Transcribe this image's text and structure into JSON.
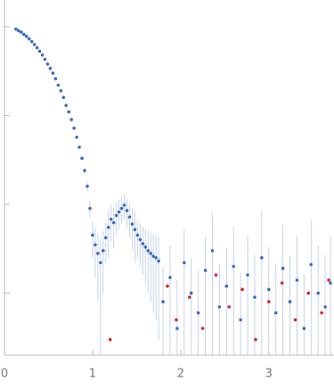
{
  "chart_data": {
    "type": "scatter",
    "xlim": [
      0,
      3.74
    ],
    "xticks": [
      0,
      1,
      2,
      3
    ],
    "ylim": [
      0.0002,
      2
    ],
    "yticks": [
      0.001,
      0.01,
      0.1,
      1
    ],
    "log_y": true,
    "error_color": "#b7c8e6",
    "series": [
      {
        "color": "#3a6bbf",
        "x": [
          0.13,
          0.16,
          0.19,
          0.22,
          0.25,
          0.28,
          0.31,
          0.34,
          0.37,
          0.4,
          0.43,
          0.46,
          0.49,
          0.52,
          0.55,
          0.58,
          0.61,
          0.64,
          0.67,
          0.7,
          0.73,
          0.76,
          0.79,
          0.82,
          0.85,
          0.88,
          0.91,
          0.94,
          0.97,
          1.0,
          1.03,
          1.06,
          1.09,
          1.12,
          1.15,
          1.18,
          1.21,
          1.24,
          1.27,
          1.3,
          1.33,
          1.36,
          1.39,
          1.42,
          1.45,
          1.48,
          1.51,
          1.54,
          1.57,
          1.6,
          1.63,
          1.66,
          1.69,
          1.72,
          1.75,
          1.8,
          1.88,
          1.96,
          2.04,
          2.12,
          2.2,
          2.28,
          2.36,
          2.44,
          2.52,
          2.6,
          2.68,
          2.76,
          2.84,
          2.92,
          3.0,
          3.08,
          3.16,
          3.24,
          3.32,
          3.4,
          3.48,
          3.56,
          3.64,
          3.7
        ],
        "values": [
          0.94,
          0.9,
          0.87,
          0.82,
          0.78,
          0.73,
          0.68,
          0.63,
          0.58,
          0.53,
          0.48,
          0.43,
          0.38,
          0.34,
          0.3,
          0.26,
          0.22,
          0.19,
          0.16,
          0.13,
          0.11,
          0.09,
          0.072,
          0.057,
          0.044,
          0.033,
          0.024,
          0.016,
          0.009,
          0.0045,
          0.0035,
          0.0028,
          0.0022,
          0.003,
          0.0042,
          0.0055,
          0.0068,
          0.0062,
          0.0075,
          0.0082,
          0.009,
          0.0098,
          0.0085,
          0.0072,
          0.006,
          0.0052,
          0.0045,
          0.004,
          0.0036,
          0.0033,
          0.003,
          0.0028,
          0.0026,
          0.0025,
          0.0023,
          0.0008,
          0.0015,
          0.0004,
          0.0022,
          0.001,
          0.0006,
          0.0018,
          0.003,
          0.0007,
          0.0012,
          0.002,
          0.0005,
          0.0016,
          0.0009,
          0.0025,
          0.0011,
          0.0006,
          0.0019,
          0.0008,
          0.0014,
          0.0004,
          0.0021,
          0.001,
          0.0007,
          0.0013
        ],
        "errors": [
          0.005,
          0.005,
          0.005,
          0.005,
          0.005,
          0.004,
          0.004,
          0.004,
          0.004,
          0.004,
          0.003,
          0.003,
          0.003,
          0.003,
          0.003,
          0.002,
          0.002,
          0.002,
          0.002,
          0.002,
          0.002,
          0.002,
          0.002,
          0.002,
          0.002,
          0.002,
          0.002,
          0.002,
          0.002,
          0.002,
          0.002,
          0.002,
          0.002,
          0.002,
          0.002,
          0.003,
          0.003,
          0.003,
          0.003,
          0.003,
          0.003,
          0.003,
          0.003,
          0.003,
          0.003,
          0.003,
          0.002,
          0.002,
          0.002,
          0.002,
          0.002,
          0.002,
          0.002,
          0.002,
          0.002,
          0.0012,
          0.002,
          0.001,
          0.003,
          0.0015,
          0.0012,
          0.0025,
          0.005,
          0.0014,
          0.002,
          0.0035,
          0.0012,
          0.0028,
          0.0018,
          0.006,
          0.0022,
          0.0015,
          0.004,
          0.0018,
          0.003,
          0.0012,
          0.0045,
          0.0025,
          0.002,
          0.003
        ]
      },
      {
        "color": "#d62728",
        "x": [
          1.2,
          1.85,
          1.95,
          2.1,
          2.25,
          2.4,
          2.55,
          2.7,
          2.85,
          3.0,
          3.15,
          3.3,
          3.45,
          3.6,
          3.68
        ],
        "values": [
          0.0003,
          0.0012,
          0.0005,
          0.0009,
          0.0004,
          0.0016,
          0.0007,
          0.0011,
          0.0003,
          0.0008,
          0.0013,
          0.0005,
          0.001,
          0.0006,
          0.0014
        ]
      }
    ]
  }
}
